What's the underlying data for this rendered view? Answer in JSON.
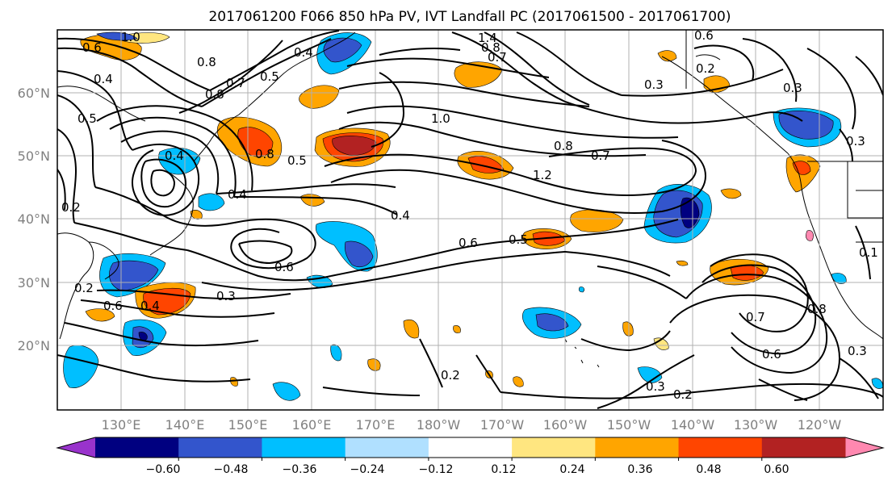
{
  "chart_data": {
    "type": "map",
    "title": "2017061200 F066 850 hPa PV, IVT Landfall PC (2017061500 - 2017061700)",
    "lon_ticks": [
      "130°E",
      "140°E",
      "150°E",
      "160°E",
      "170°E",
      "180°W",
      "170°W",
      "160°W",
      "150°W",
      "140°W",
      "130°W",
      "120°W"
    ],
    "lat_ticks": [
      "60°N",
      "50°N",
      "40°N",
      "30°N",
      "20°N"
    ],
    "grid": true,
    "colorbar": {
      "orientation": "horizontal",
      "extend": "both",
      "ticks": [
        "−0.60",
        "−0.48",
        "−0.36",
        "−0.24",
        "−0.12",
        "0.12",
        "0.24",
        "0.36",
        "0.48",
        "0.60"
      ],
      "colors": [
        "#9933cc",
        "#000080",
        "#3355cc",
        "#00bfff",
        "#b0e0ff",
        "#ffffff",
        "#ffe680",
        "#ffa500",
        "#ff4500",
        "#b22222",
        "#ff88b0"
      ]
    },
    "contour_labels": [
      "1.0",
      "0.6",
      "0.4",
      "0.8",
      "0.8",
      "0.7",
      "0.5",
      "0.4",
      "1.4",
      "0.8",
      "0.7",
      "0.6",
      "0.2",
      "0.3",
      "0.3",
      "0.5",
      "0.8",
      "0.5",
      "0.4",
      "0.4",
      "1.0",
      "0.8",
      "0.7",
      "1.2",
      "0.4",
      "0.6",
      "0.5",
      "0.6",
      "0.3",
      "0.2",
      "0.6",
      "0.4",
      "0.7",
      "0.6",
      "0.8",
      "0.2",
      "0.3",
      "0.2",
      "0.1",
      "0.3",
      "0.2",
      "0.3"
    ]
  }
}
